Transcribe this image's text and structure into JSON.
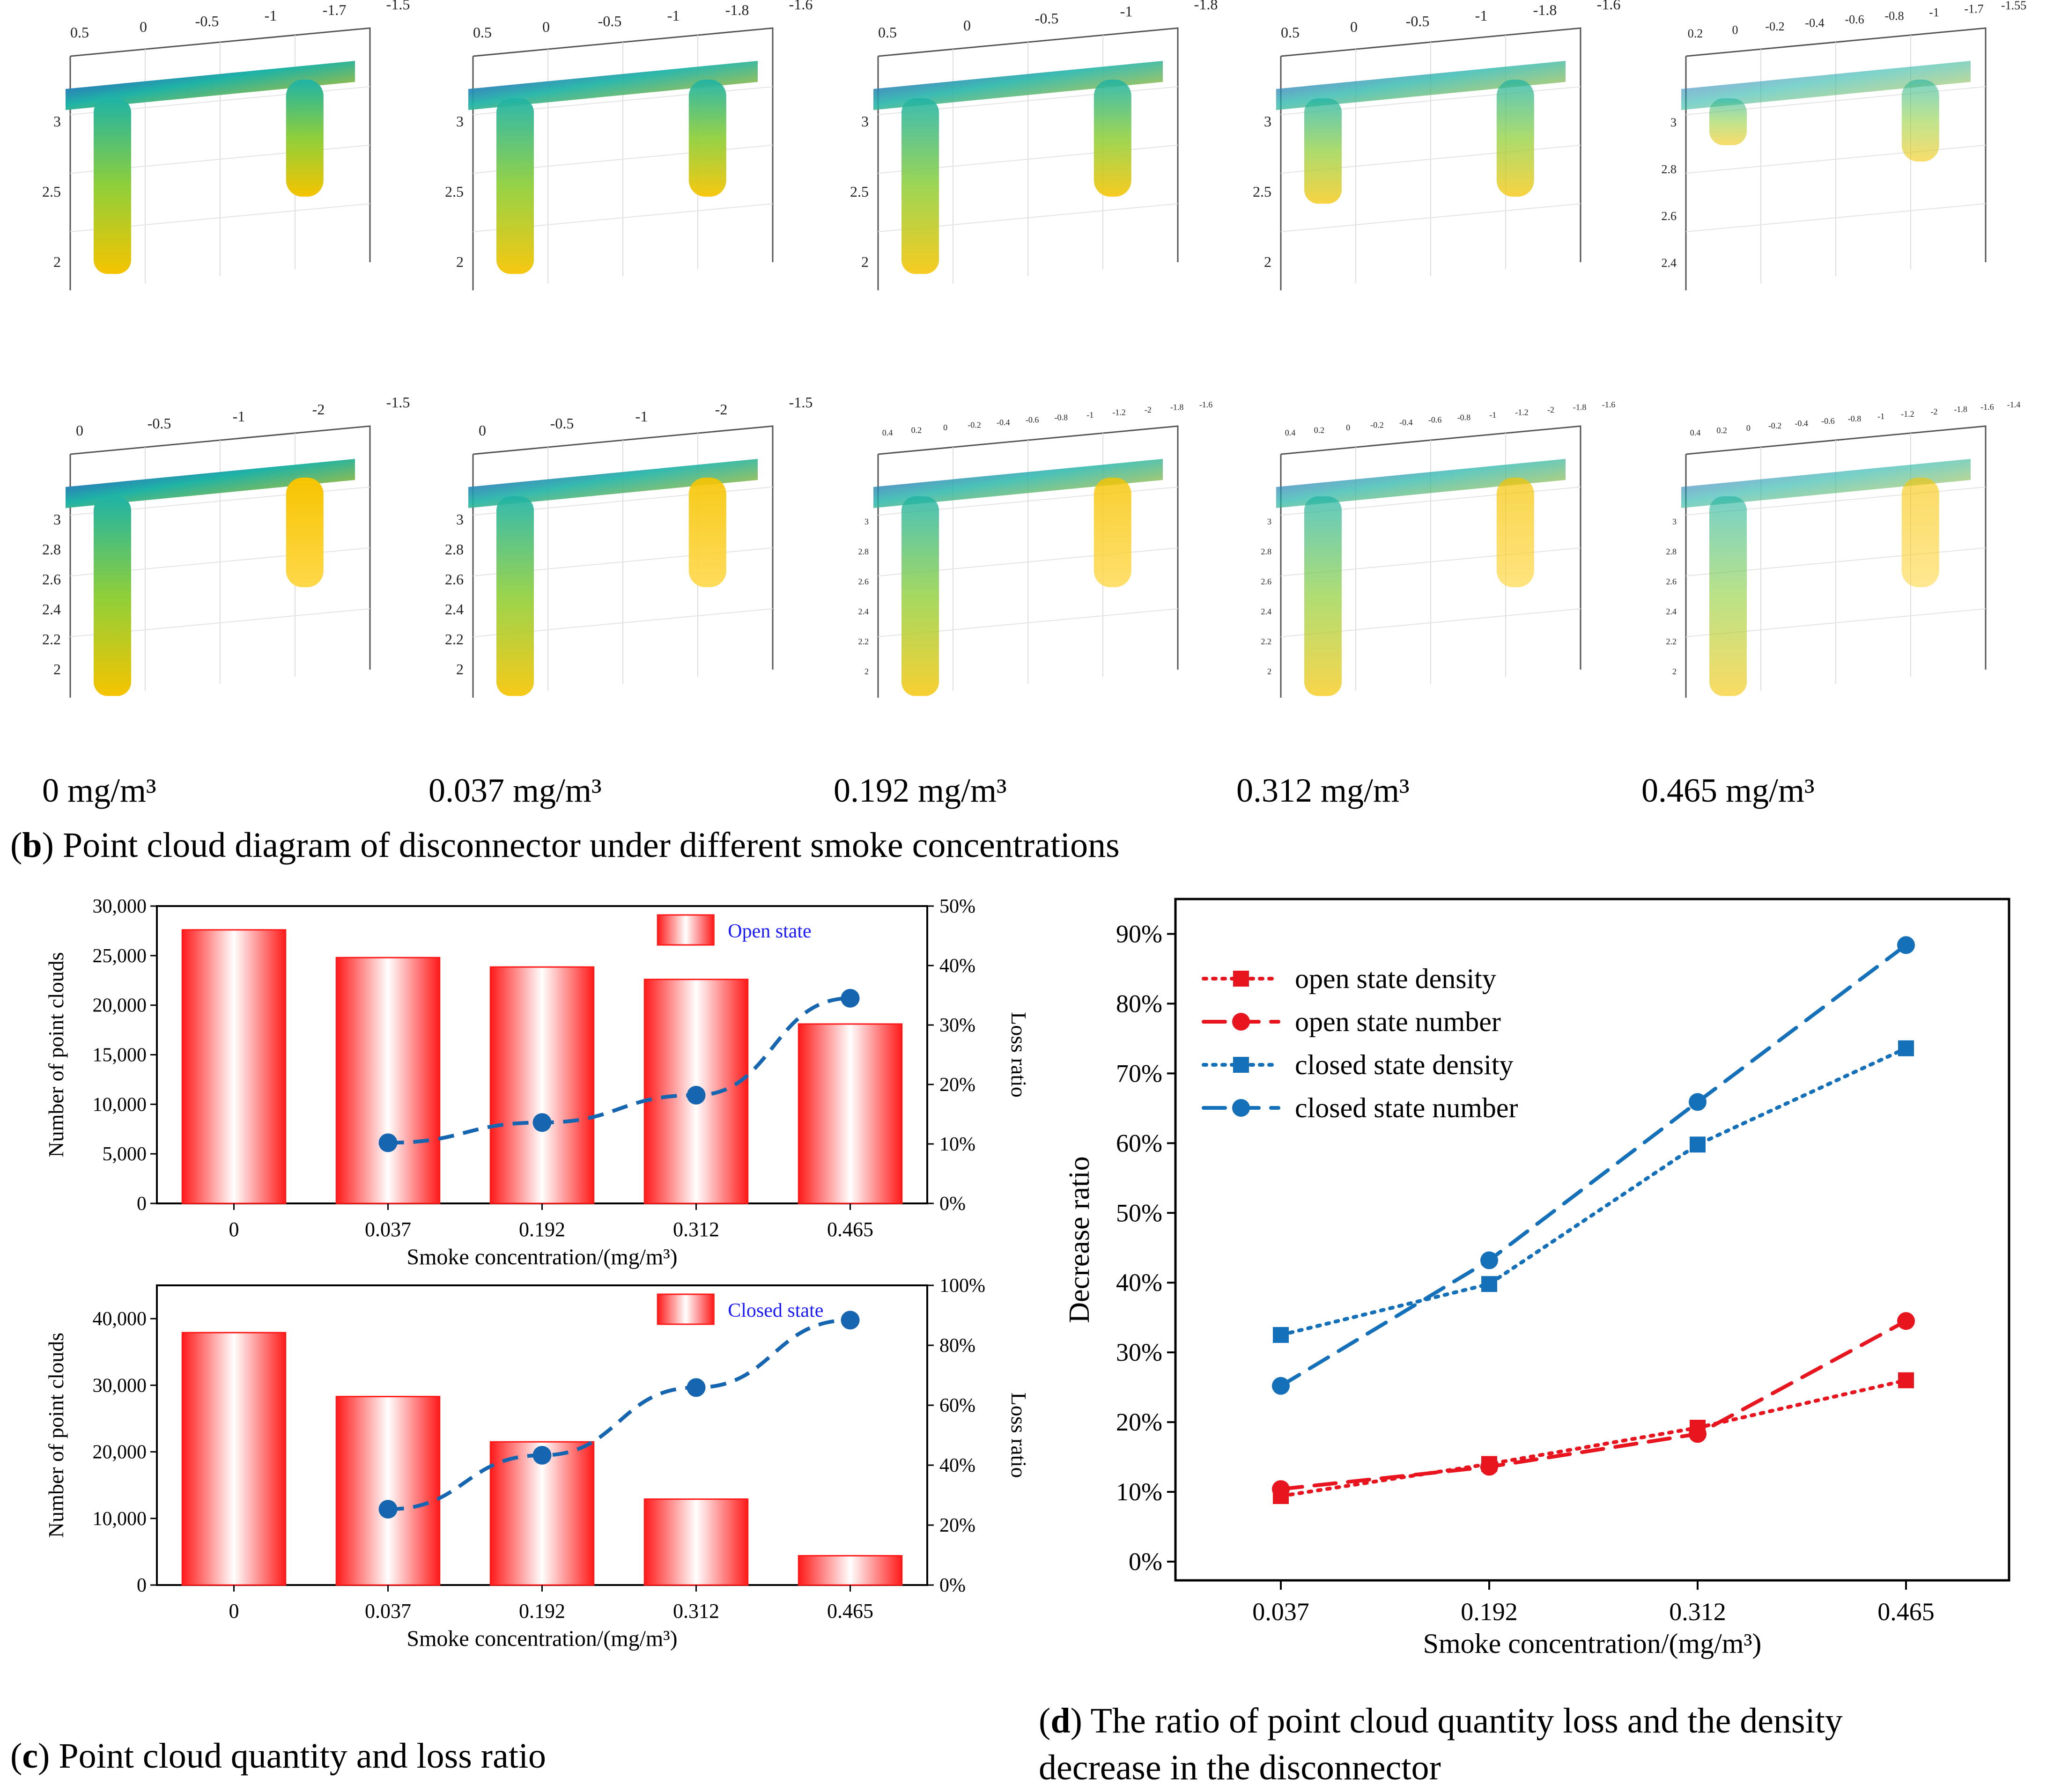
{
  "panel_b": {
    "caption_letter": "b",
    "caption_text": "Point cloud diagram of disconnector under different smoke concentrations",
    "concentration_labels": [
      "0 mg/m³",
      "0.037 mg/m³",
      "0.192 mg/m³",
      "0.312 mg/m³",
      "0.465 mg/m³"
    ],
    "open_state_axes": [
      {
        "y_ticks": [
          "3",
          "2.5",
          "2"
        ],
        "x_ticks": [
          "0.5",
          "0",
          "-0.5",
          "-1",
          "-1.7",
          "-1.5"
        ]
      },
      {
        "y_ticks": [
          "3",
          "2.5",
          "2"
        ],
        "x_ticks": [
          "0.5",
          "0",
          "-0.5",
          "-1",
          "-1.8",
          "-1.6"
        ]
      },
      {
        "y_ticks": [
          "3",
          "2.5",
          "2"
        ],
        "x_ticks": [
          "0.5",
          "0",
          "-0.5",
          "-1",
          "-1.8"
        ]
      },
      {
        "y_ticks": [
          "3",
          "2.5",
          "2"
        ],
        "x_ticks": [
          "0.5",
          "0",
          "-0.5",
          "-1",
          "-1.8",
          "-1.6"
        ]
      },
      {
        "y_ticks": [
          "3",
          "2.8",
          "2.6",
          "2.4"
        ],
        "x_ticks": [
          "0.2",
          "0",
          "-0.2",
          "-0.4",
          "-0.6",
          "-0.8",
          "-1",
          "-1.7",
          "-1.55"
        ]
      }
    ],
    "closed_state_axes": [
      {
        "y_ticks": [
          "3",
          "2.8",
          "2.6",
          "2.4",
          "2.2",
          "2"
        ],
        "x_ticks": [
          "0",
          "-0.5",
          "-1",
          "-2",
          "-1.5"
        ]
      },
      {
        "y_ticks": [
          "3",
          "2.8",
          "2.6",
          "2.4",
          "2.2",
          "2"
        ],
        "x_ticks": [
          "0",
          "-0.5",
          "-1",
          "-2",
          "-1.5"
        ]
      },
      {
        "y_ticks": [
          "3",
          "2.8",
          "2.6",
          "2.4",
          "2.2",
          "2"
        ],
        "x_ticks": [
          "0.4",
          "0.2",
          "0",
          "-0.2",
          "-0.4",
          "-0.6",
          "-0.8",
          "-1",
          "-1.2",
          "-2",
          "-1.8",
          "-1.6"
        ]
      },
      {
        "y_ticks": [
          "3",
          "2.8",
          "2.6",
          "2.4",
          "2.2",
          "2"
        ],
        "x_ticks": [
          "0.4",
          "0.2",
          "0",
          "-0.2",
          "-0.4",
          "-0.6",
          "-0.8",
          "-1",
          "-1.2",
          "-2",
          "-1.8",
          "-1.6"
        ]
      },
      {
        "y_ticks": [
          "3",
          "2.8",
          "2.6",
          "2.4",
          "2.2",
          "2"
        ],
        "x_ticks": [
          "0.4",
          "0.2",
          "0",
          "-0.2",
          "-0.4",
          "-0.6",
          "-0.8",
          "-1",
          "-1.2",
          "-2",
          "-1.8",
          "-1.6",
          "-1.4"
        ]
      }
    ]
  },
  "panel_c": {
    "caption_letter": "c",
    "caption_text": "Point cloud quantity and loss ratio"
  },
  "panel_d": {
    "caption_letter": "d",
    "caption_line1": "The ratio of point cloud quantity loss and the density",
    "caption_line2": "decrease in the disconnector"
  },
  "colors": {
    "bar_red": "#ff1a1a",
    "loss_blue": "#1565b0",
    "open_red": "#e8141e",
    "closed_blue": "#1470b8",
    "legend_text_blue": "#1a1aff"
  },
  "chart_data": [
    {
      "id": "c_open",
      "type": "bar",
      "legend": "Open state",
      "categories": [
        "0",
        "0.037",
        "0.192",
        "0.312",
        "0.465"
      ],
      "values": [
        27600,
        24800,
        23850,
        22600,
        18100
      ],
      "ylim": [
        0,
        30000
      ],
      "y_ticks": [
        "0",
        "5,000",
        "10,000",
        "15,000",
        "20,000",
        "25,000",
        "30,000"
      ],
      "ylabel": "Number of point clouds",
      "xlabel": "Smoke concentration/(mg/m³)",
      "secondary": {
        "type": "line",
        "ylabel": "Loss ratio",
        "ylim": [
          0,
          50
        ],
        "y_ticks": [
          "0%",
          "10%",
          "20%",
          "30%",
          "40%",
          "50%"
        ],
        "x_index": [
          1,
          2,
          3,
          4
        ],
        "values": [
          10.2,
          13.6,
          18.2,
          34.5
        ]
      }
    },
    {
      "id": "c_closed",
      "type": "bar",
      "legend": "Closed state",
      "categories": [
        "0",
        "0.037",
        "0.192",
        "0.312",
        "0.465"
      ],
      "values": [
        37900,
        28300,
        21500,
        12900,
        4400
      ],
      "ylim": [
        0,
        45000
      ],
      "y_ticks": [
        "0",
        "10,000",
        "20,000",
        "30,000",
        "40,000"
      ],
      "y_tick_values": [
        0,
        10000,
        20000,
        30000,
        40000
      ],
      "ylabel": "Number of point clouds",
      "xlabel": "Smoke concentration/(mg/m³)",
      "secondary": {
        "type": "line",
        "ylabel": "Loss ratio",
        "ylim": [
          0,
          100
        ],
        "y_ticks": [
          "0%",
          "20%",
          "40%",
          "60%",
          "80%",
          "100%"
        ],
        "x_index": [
          1,
          2,
          3,
          4
        ],
        "values": [
          25.3,
          43.3,
          65.9,
          88.4
        ]
      }
    },
    {
      "id": "d",
      "type": "line",
      "categories": [
        "0.037",
        "0.192",
        "0.312",
        "0.465"
      ],
      "ylim": [
        0,
        90
      ],
      "y_ticks": [
        "0%",
        "10%",
        "20%",
        "30%",
        "40%",
        "50%",
        "60%",
        "70%",
        "80%",
        "90%"
      ],
      "ylabel": "Decrease ratio",
      "xlabel": "Smoke concentration/(mg/m³)",
      "series": [
        {
          "name": "open state density",
          "values": [
            9.4,
            14.0,
            19.2,
            26.0
          ],
          "color": "#e8141e",
          "dash": "dotted",
          "marker": "square"
        },
        {
          "name": "open state number",
          "values": [
            10.4,
            13.6,
            18.3,
            34.5
          ],
          "color": "#e8141e",
          "dash": "dashed",
          "marker": "circle"
        },
        {
          "name": "closed state density",
          "values": [
            32.5,
            39.8,
            59.8,
            73.6
          ],
          "color": "#1470b8",
          "dash": "dotted",
          "marker": "square"
        },
        {
          "name": "closed state number",
          "values": [
            25.2,
            43.2,
            65.9,
            88.4
          ],
          "color": "#1470b8",
          "dash": "dashed",
          "marker": "circle"
        }
      ]
    }
  ]
}
